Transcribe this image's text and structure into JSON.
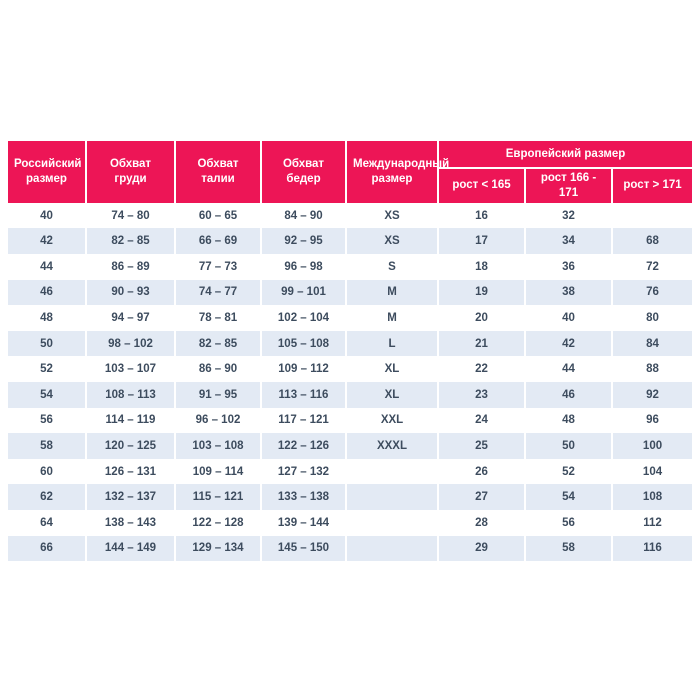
{
  "colors": {
    "accent": "#ed1556",
    "stripe": "#e3eaf4",
    "data_text": "#3d4c5e",
    "header_text": "#ffffff",
    "background": "#ffffff"
  },
  "chart_data": {
    "type": "table",
    "title": "",
    "columns": [
      "Российский размер",
      "Обхват груди",
      "Обхват талии",
      "Обхват бедер",
      "Международный размер"
    ],
    "group_header": {
      "label": "Европейский размер",
      "subcolumns": [
        "рост < 165",
        "рост 166 - 171",
        "рост > 171"
      ]
    },
    "rows": [
      [
        "40",
        "74 – 80",
        "60 – 65",
        "84 – 90",
        "XS",
        "16",
        "32",
        ""
      ],
      [
        "42",
        "82 – 85",
        "66 – 69",
        "92 – 95",
        "XS",
        "17",
        "34",
        "68"
      ],
      [
        "44",
        "86 – 89",
        "77 – 73",
        "96 – 98",
        "S",
        "18",
        "36",
        "72"
      ],
      [
        "46",
        "90 – 93",
        "74 – 77",
        "99 – 101",
        "M",
        "19",
        "38",
        "76"
      ],
      [
        "48",
        "94 – 97",
        "78 – 81",
        "102 – 104",
        "M",
        "20",
        "40",
        "80"
      ],
      [
        "50",
        "98 – 102",
        "82 – 85",
        "105 – 108",
        "L",
        "21",
        "42",
        "84"
      ],
      [
        "52",
        "103 – 107",
        "86 – 90",
        "109 – 112",
        "XL",
        "22",
        "44",
        "88"
      ],
      [
        "54",
        "108 – 113",
        "91 – 95",
        "113 – 116",
        "XL",
        "23",
        "46",
        "92"
      ],
      [
        "56",
        "114 – 119",
        "96 – 102",
        "117 – 121",
        "XXL",
        "24",
        "48",
        "96"
      ],
      [
        "58",
        "120 – 125",
        "103 – 108",
        "122 – 126",
        "XXXL",
        "25",
        "50",
        "100"
      ],
      [
        "60",
        "126 – 131",
        "109 – 114",
        "127 – 132",
        "",
        "26",
        "52",
        "104"
      ],
      [
        "62",
        "132 – 137",
        "115 – 121",
        "133 – 138",
        "",
        "27",
        "54",
        "108"
      ],
      [
        "64",
        "138 – 143",
        "122 – 128",
        "139 – 144",
        "",
        "28",
        "56",
        "112"
      ],
      [
        "66",
        "144 – 149",
        "129 – 134",
        "145 – 150",
        "",
        "29",
        "58",
        "116"
      ]
    ]
  }
}
